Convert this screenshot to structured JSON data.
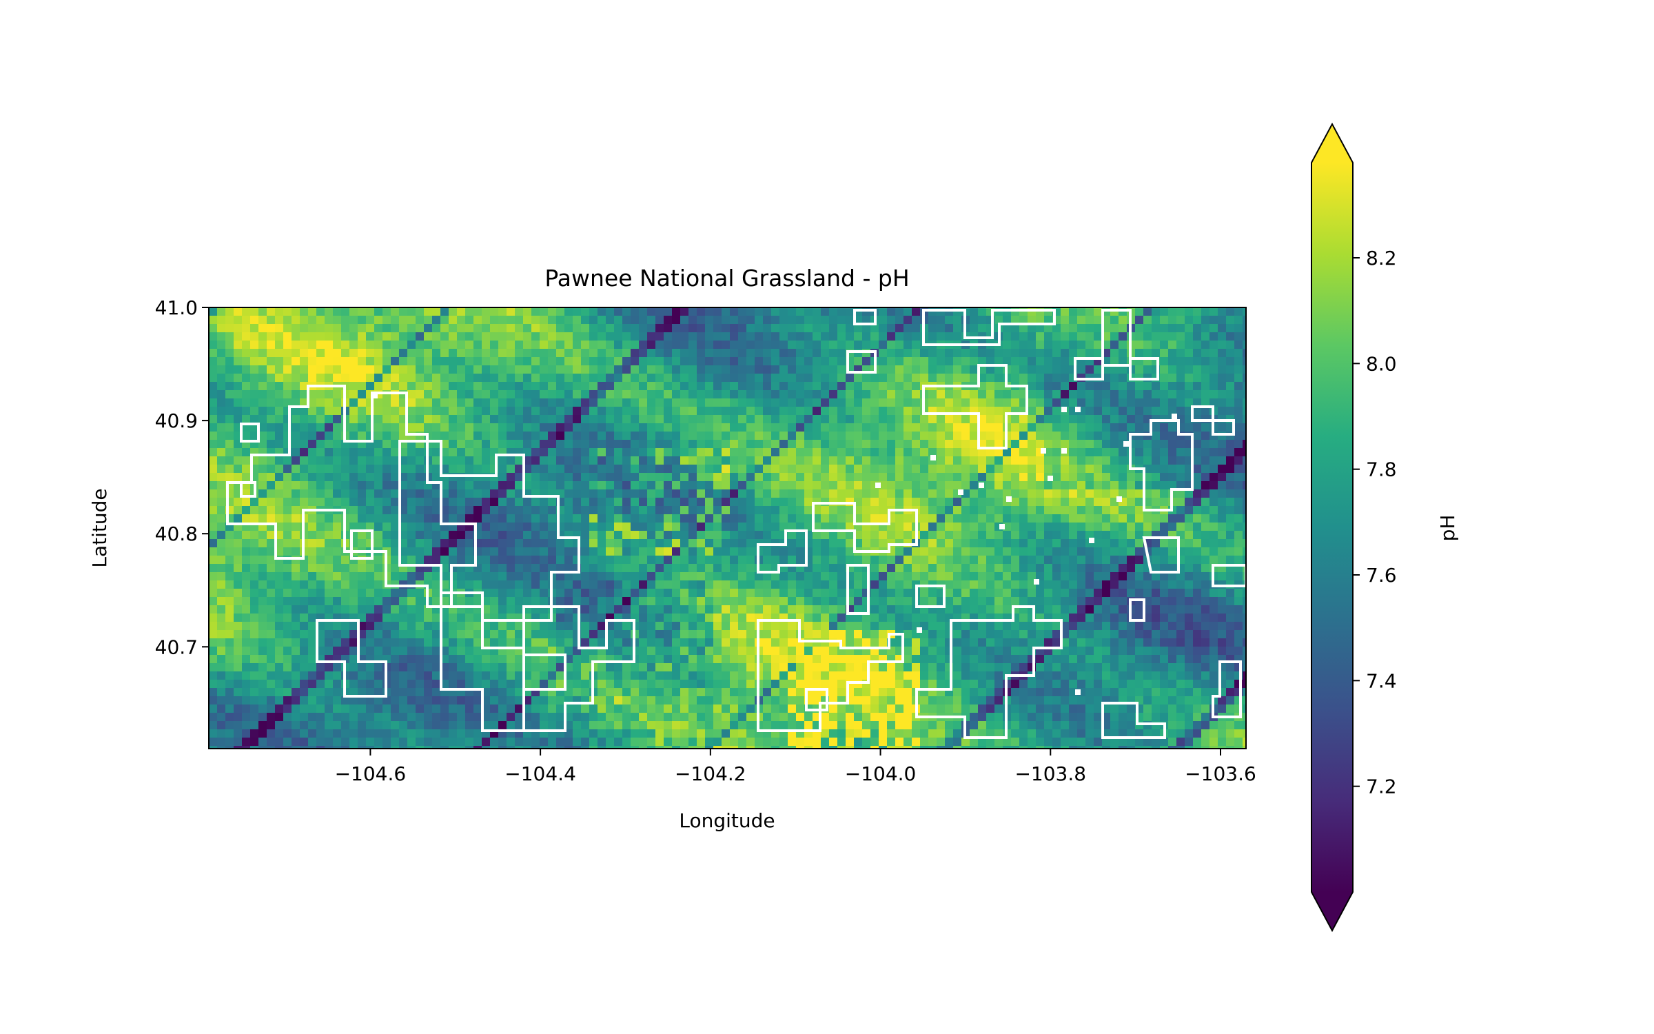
{
  "chart_data": {
    "type": "heatmap",
    "title": "Pawnee National Grassland - pH",
    "xlabel": "Longitude",
    "ylabel": "Latitude",
    "xlim": [
      -104.79,
      -103.57
    ],
    "ylim": [
      40.61,
      41.0
    ],
    "x_ticks": [
      -104.6,
      -104.4,
      -104.2,
      -104.0,
      -103.8,
      -103.6
    ],
    "x_tick_labels": [
      "−104.6",
      "−104.4",
      "−104.2",
      "−104.0",
      "−103.8",
      "−103.6"
    ],
    "y_ticks": [
      40.7,
      40.8,
      40.9,
      41.0
    ],
    "y_tick_labels": [
      "40.7",
      "40.8",
      "40.9",
      "41.0"
    ],
    "colorbar": {
      "label": "pH",
      "colormap": "viridis",
      "range": [
        7.0,
        8.38
      ],
      "extend": "both",
      "ticks": [
        7.2,
        7.4,
        7.6,
        7.8,
        8.0,
        8.2
      ],
      "tick_labels": [
        "7.2",
        "7.4",
        "7.6",
        "7.8",
        "8.0",
        "8.2"
      ]
    },
    "grid": false,
    "overlay": "white grassland boundary outlines"
  },
  "colors": {
    "overlay_stroke": "#ffffff",
    "axes": "#000000",
    "viridis": [
      "#440154",
      "#472c7a",
      "#3b518b",
      "#2c718e",
      "#21908d",
      "#27ad81",
      "#5cc863",
      "#aadc32",
      "#fde725"
    ]
  }
}
